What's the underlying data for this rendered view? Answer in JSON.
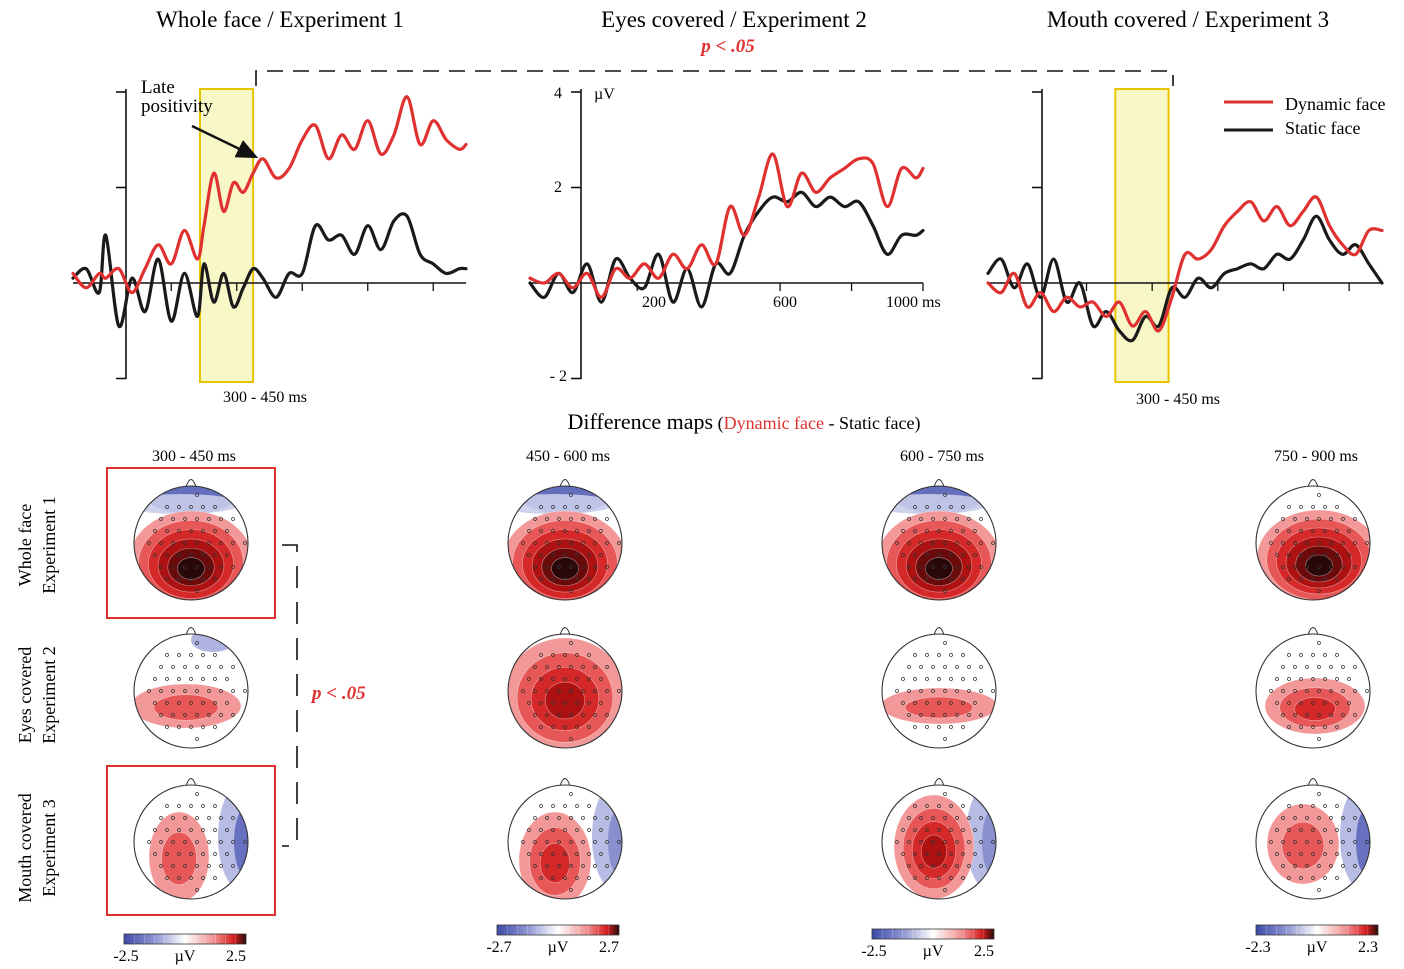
{
  "figure": {
    "erp_titles": [
      "Whole face / Experiment 1",
      "Eyes covered / Experiment 2",
      "Mouth covered /  Experiment 3"
    ],
    "significance_top": "p < .05",
    "significance_side": "p < .05",
    "late_positivity": [
      "Late",
      "positivity"
    ],
    "window_labels": [
      "300 - 450 ms",
      "300 - 450 ms"
    ],
    "axis_unit": "µV",
    "y_ticks": [
      "4",
      "2",
      "- 2"
    ],
    "x_ticks": [
      "200",
      "600",
      "1000 ms"
    ],
    "legend": [
      {
        "label": "Dynamic face",
        "color": "#e03131"
      },
      {
        "label": "Static face",
        "color": "#1a1a1a"
      }
    ],
    "diff_title": {
      "main": "Difference maps",
      "open": "(",
      "red": "Dynamic face",
      "dash": " - ",
      "rest": "Static face)"
    },
    "time_windows": [
      "300 - 450  ms",
      "450 - 600  ms",
      "600 - 750  ms",
      "750 - 900  ms"
    ],
    "row_labels": [
      [
        "Whole face",
        "Experiment 1"
      ],
      [
        "Eyes covered",
        "Experiment 2"
      ],
      [
        "Mouth covered",
        "Experiment 3"
      ]
    ],
    "colorbars": [
      {
        "min": "-2.5",
        "unit": "µV",
        "max": "2.5"
      },
      {
        "min": "-2.7",
        "unit": "µV",
        "max": "2.7"
      },
      {
        "min": "-2.5",
        "unit": "µV",
        "max": "2.5"
      },
      {
        "min": "-2.3",
        "unit": "µV",
        "max": "2.3"
      }
    ],
    "colors": {
      "dynamic": "#e03131",
      "static": "#1a1a1a",
      "window": "#f7f7c8",
      "window_border": "#e8c400",
      "highlight": "#e03131",
      "negative": "#4a55b0",
      "positive": "#d81e1e"
    }
  },
  "chart_data": [
    {
      "type": "line",
      "title": "Whole face / Experiment 1",
      "ylabel": "µV",
      "x_unit": "ms",
      "ylim": [
        -2,
        4
      ],
      "xlim": [
        -100,
        1100
      ],
      "highlight_window": [
        300,
        450
      ],
      "series": [
        {
          "name": "Dynamic face",
          "x": [
            -100,
            -60,
            -20,
            0,
            40,
            80,
            120,
            160,
            200,
            240,
            280,
            300,
            330,
            360,
            390,
            420,
            450,
            480,
            520,
            560,
            600,
            640,
            680,
            720,
            760,
            800,
            840,
            880,
            920,
            960,
            1000,
            1040,
            1080,
            1100
          ],
          "y": [
            0.2,
            -0.1,
            0.2,
            0.1,
            0.3,
            -0.2,
            0.3,
            0.8,
            0.4,
            1.1,
            0.5,
            1.2,
            2.3,
            1.5,
            2.1,
            1.9,
            2.3,
            2.6,
            2.2,
            2.4,
            3.0,
            3.3,
            2.6,
            3.1,
            2.8,
            3.4,
            2.7,
            3.1,
            3.9,
            2.9,
            3.4,
            3.0,
            2.8,
            2.9
          ]
        },
        {
          "name": "Static face",
          "x": [
            -100,
            -60,
            -20,
            0,
            40,
            80,
            120,
            160,
            200,
            240,
            280,
            300,
            330,
            360,
            390,
            420,
            450,
            480,
            520,
            560,
            600,
            640,
            680,
            720,
            760,
            800,
            840,
            880,
            920,
            960,
            1000,
            1040,
            1080,
            1100
          ],
          "y": [
            0.1,
            0.3,
            -0.2,
            1.0,
            -0.9,
            0.1,
            -0.6,
            0.5,
            -0.8,
            0.2,
            -0.7,
            0.4,
            -0.4,
            0.2,
            -0.5,
            -0.1,
            0.3,
            0.1,
            -0.3,
            0.2,
            0.2,
            1.2,
            0.9,
            1.0,
            0.6,
            1.2,
            0.7,
            1.3,
            1.4,
            0.6,
            0.4,
            0.2,
            0.3,
            0.3
          ]
        }
      ]
    },
    {
      "type": "line",
      "title": "Eyes covered / Experiment 2",
      "ylabel": "µV",
      "x_unit": "ms",
      "ylim": [
        -2,
        4
      ],
      "xlim": [
        -100,
        1000
      ],
      "series": [
        {
          "name": "Dynamic face",
          "x": [
            -100,
            -60,
            -20,
            20,
            60,
            100,
            140,
            180,
            220,
            260,
            300,
            340,
            380,
            420,
            460,
            500,
            540,
            580,
            620,
            660,
            700,
            740,
            780,
            820,
            860,
            900,
            940,
            980,
            1000
          ],
          "y": [
            0.1,
            0.0,
            0.2,
            -0.1,
            0.2,
            -0.3,
            0.3,
            0.1,
            0.4,
            0.1,
            0.6,
            0.3,
            0.8,
            0.4,
            1.6,
            1.0,
            1.8,
            2.7,
            1.6,
            2.3,
            1.9,
            2.2,
            2.4,
            2.6,
            2.5,
            1.6,
            2.4,
            2.2,
            2.4
          ]
        },
        {
          "name": "Static face",
          "x": [
            -100,
            -60,
            -20,
            20,
            60,
            100,
            140,
            180,
            220,
            260,
            300,
            340,
            380,
            420,
            460,
            500,
            540,
            580,
            620,
            660,
            700,
            740,
            780,
            820,
            860,
            900,
            940,
            980,
            1000
          ],
          "y": [
            0.0,
            -0.3,
            0.2,
            -0.2,
            0.4,
            -0.4,
            0.5,
            0.1,
            -0.1,
            0.6,
            -0.4,
            0.3,
            -0.5,
            0.4,
            0.2,
            1.0,
            1.5,
            1.8,
            1.7,
            1.9,
            1.6,
            1.8,
            1.6,
            1.7,
            1.2,
            0.6,
            1.0,
            1.0,
            1.1
          ]
        }
      ]
    },
    {
      "type": "line",
      "title": "Mouth covered /  Experiment 3",
      "ylabel": "µV",
      "x_unit": "ms",
      "ylim": [
        -2,
        4
      ],
      "xlim": [
        -100,
        1100
      ],
      "highlight_window": [
        300,
        450
      ],
      "series": [
        {
          "name": "Dynamic face",
          "x": [
            -100,
            -60,
            -20,
            20,
            60,
            100,
            140,
            180,
            220,
            260,
            300,
            340,
            380,
            420,
            460,
            500,
            540,
            580,
            620,
            660,
            700,
            740,
            780,
            820,
            860,
            900,
            940,
            980,
            1020,
            1060,
            1100
          ],
          "y": [
            0.0,
            -0.2,
            0.2,
            -0.5,
            -0.2,
            -0.6,
            -0.3,
            -0.5,
            -0.4,
            -0.7,
            -0.4,
            -0.9,
            -0.6,
            -1.0,
            -0.3,
            0.6,
            0.5,
            0.7,
            1.2,
            1.5,
            1.7,
            1.3,
            1.6,
            1.2,
            1.5,
            1.8,
            1.2,
            0.8,
            0.6,
            1.1,
            1.1
          ]
        },
        {
          "name": "Static face",
          "x": [
            -100,
            -60,
            -20,
            20,
            60,
            100,
            140,
            180,
            220,
            260,
            300,
            340,
            380,
            420,
            460,
            500,
            540,
            580,
            620,
            660,
            700,
            740,
            780,
            820,
            860,
            900,
            940,
            980,
            1020,
            1060,
            1100
          ],
          "y": [
            0.2,
            0.5,
            -0.1,
            0.4,
            -0.3,
            0.5,
            -0.4,
            0.0,
            -0.9,
            -0.6,
            -1.0,
            -1.2,
            -0.7,
            -0.9,
            -0.1,
            -0.3,
            0.1,
            -0.1,
            0.2,
            0.3,
            0.4,
            0.3,
            0.6,
            0.5,
            0.9,
            1.4,
            0.9,
            0.6,
            0.8,
            0.4,
            0.0
          ]
        }
      ]
    },
    {
      "type": "heatmap",
      "title": "Difference maps (Dynamic face - Static face)",
      "columns": [
        "300 - 450  ms",
        "450 - 600  ms",
        "600 - 750  ms",
        "750 - 900  ms"
      ],
      "rows": [
        "Whole face Experiment 1",
        "Eyes covered Experiment 2",
        "Mouth covered Experiment 3"
      ],
      "color_ranges": [
        [
          -2.5,
          2.5
        ],
        [
          -2.7,
          2.7
        ],
        [
          -2.5,
          2.5
        ],
        [
          -2.3,
          2.3
        ]
      ],
      "unit": "µV",
      "peak_values": [
        [
          2.4,
          2.6,
          2.4,
          2.2
        ],
        [
          0.5,
          1.9,
          0.6,
          1.1
        ],
        [
          0.7,
          1.4,
          1.6,
          0.9
        ]
      ],
      "highlighted_cells": [
        [
          0,
          0
        ],
        [
          2,
          0
        ]
      ]
    }
  ]
}
